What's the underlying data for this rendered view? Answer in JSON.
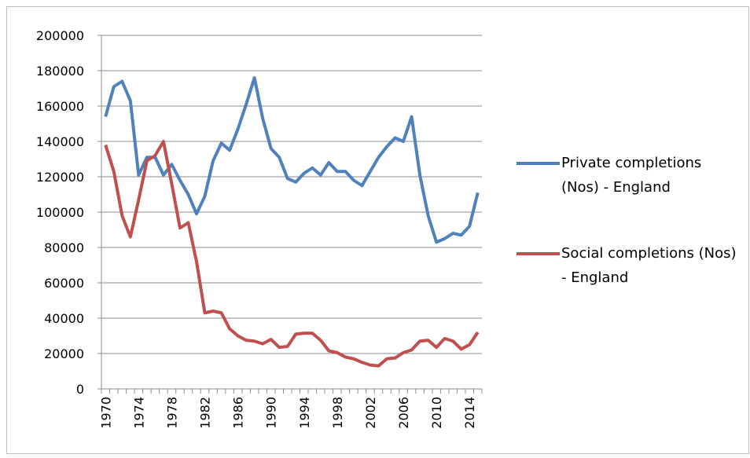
{
  "chart_data": {
    "type": "line",
    "categories": [
      "1970",
      null,
      null,
      null,
      "1974",
      null,
      null,
      null,
      "1978",
      null,
      null,
      null,
      "1982",
      null,
      null,
      null,
      "1986",
      null,
      null,
      null,
      "1990",
      null,
      null,
      null,
      "1994",
      null,
      null,
      null,
      "1998",
      null,
      null,
      null,
      "2002",
      null,
      null,
      null,
      "2006",
      null,
      null,
      null,
      "2010",
      null,
      null,
      null,
      "2014",
      null
    ],
    "series": [
      {
        "name": "Private completions (Nos) - England",
        "color": "#4f81bd",
        "values": [
          154000,
          171000,
          174000,
          163000,
          121000,
          131000,
          131000,
          121000,
          127000,
          118000,
          110000,
          99000,
          109000,
          129000,
          139000,
          135000,
          147000,
          161000,
          176000,
          153000,
          136000,
          131000,
          119000,
          117000,
          122000,
          125000,
          121000,
          128000,
          123000,
          123000,
          118000,
          115000,
          123000,
          131000,
          137000,
          142000,
          140000,
          154000,
          121000,
          98000,
          83000,
          85000,
          88000,
          87000,
          92000,
          111000
        ]
      },
      {
        "name": "Social completions (Nos) - England",
        "color": "#c0504d",
        "values": [
          138000,
          123000,
          98000,
          86000,
          107000,
          129000,
          132000,
          140000,
          116000,
          91000,
          94000,
          72000,
          43000,
          44000,
          43000,
          34000,
          30000,
          27500,
          27000,
          25500,
          28000,
          23500,
          24000,
          31000,
          31500,
          31500,
          27500,
          21500,
          20500,
          18000,
          17000,
          15000,
          13500,
          13000,
          17000,
          17500,
          20500,
          22000,
          27000,
          27500,
          23500,
          28500,
          27000,
          22500,
          25000,
          32000
        ]
      }
    ],
    "ylim": [
      0,
      200000
    ],
    "yticks": [
      0,
      20000,
      40000,
      60000,
      80000,
      100000,
      120000,
      140000,
      160000,
      180000,
      200000
    ],
    "grid": true,
    "legend": "right"
  }
}
